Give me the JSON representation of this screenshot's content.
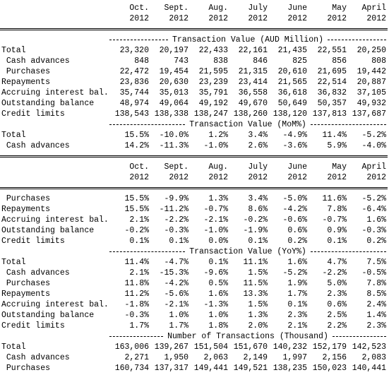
{
  "header_top": {
    "months": [
      "Oct.",
      "Sept.",
      "Aug.",
      "July",
      "June",
      "May",
      "April"
    ],
    "years": [
      "2012",
      "2012",
      "2012",
      "2012",
      "2012",
      "2012",
      "2012"
    ]
  },
  "value_section": {
    "title": "Transaction Value (AUD Million)",
    "rows": [
      {
        "label": "Total",
        "values": [
          "23,320",
          "20,197",
          "22,433",
          "22,161",
          "21,435",
          "22,551",
          "20,250"
        ]
      },
      {
        "label": " Cash advances",
        "values": [
          "848",
          "743",
          "838",
          "846",
          "825",
          "856",
          "808"
        ]
      },
      {
        "label": " Purchases",
        "values": [
          "22,472",
          "19,454",
          "21,595",
          "21,315",
          "20,610",
          "21,695",
          "19,442"
        ]
      },
      {
        "label": "Repayments",
        "values": [
          "23,836",
          "20,630",
          "23,239",
          "23,414",
          "21,565",
          "22,514",
          "20,887"
        ]
      },
      {
        "label": "Accruing interest bal.",
        "values": [
          "35,744",
          "35,013",
          "35,791",
          "36,558",
          "36,618",
          "36,832",
          "37,105"
        ]
      },
      {
        "label": "Outstanding balance",
        "values": [
          "48,974",
          "49,064",
          "49,192",
          "49,670",
          "50,649",
          "50,357",
          "49,932"
        ]
      },
      {
        "label": "Credit limits",
        "values": [
          "138,543",
          "138,338",
          "138,247",
          "138,260",
          "138,120",
          "137,813",
          "137,687"
        ]
      }
    ]
  },
  "mom_section": {
    "title": "Transaction Value (MoM%)",
    "rows": [
      {
        "label": "Total",
        "values": [
          "15.5%",
          "-10.0%",
          "1.2%",
          "3.4%",
          "-4.9%",
          "11.4%",
          "-5.2%"
        ]
      },
      {
        "label": " Cash advances",
        "values": [
          "14.2%",
          "-11.3%",
          "-1.0%",
          "2.6%",
          "-3.6%",
          "5.9%",
          "-4.0%"
        ]
      }
    ]
  },
  "header_bottom": {
    "months": [
      "Oct.",
      "Sept.",
      "Aug.",
      "July",
      "June",
      "May",
      "April"
    ],
    "years": [
      "2012",
      "2012",
      "2012",
      "2012",
      "2012",
      "2012",
      "2012"
    ]
  },
  "mom_section_continued": {
    "rows": [
      {
        "label": " Purchases",
        "values": [
          "15.5%",
          "-9.9%",
          "1.3%",
          "3.4%",
          "-5.0%",
          "11.6%",
          "-5.2%"
        ]
      },
      {
        "label": "Repayments",
        "values": [
          "15.5%",
          "-11.2%",
          "-0.7%",
          "8.6%",
          "-4.2%",
          "7.8%",
          "-6.4%"
        ]
      },
      {
        "label": "Accruing interest bal.",
        "values": [
          "2.1%",
          "-2.2%",
          "-2.1%",
          "-0.2%",
          "-0.6%",
          "-0.7%",
          "1.6%"
        ]
      },
      {
        "label": "Outstanding balance",
        "values": [
          "-0.2%",
          "-0.3%",
          "-1.0%",
          "-1.9%",
          "0.6%",
          "0.9%",
          "-0.3%"
        ]
      },
      {
        "label": "Credit limits",
        "values": [
          "0.1%",
          "0.1%",
          "0.0%",
          "0.1%",
          "0.2%",
          "0.1%",
          "0.2%"
        ]
      }
    ]
  },
  "yoy_section": {
    "title": "Transaction Value (YoY%)",
    "rows": [
      {
        "label": "Total",
        "values": [
          "11.4%",
          "-4.7%",
          "0.1%",
          "11.1%",
          "1.6%",
          "4.7%",
          "7.5%"
        ]
      },
      {
        "label": " Cash advances",
        "values": [
          "2.1%",
          "-15.3%",
          "-9.6%",
          "1.5%",
          "-5.2%",
          "-2.2%",
          "-0.5%"
        ]
      },
      {
        "label": " Purchases",
        "values": [
          "11.8%",
          "-4.2%",
          "0.5%",
          "11.5%",
          "1.9%",
          "5.0%",
          "7.8%"
        ]
      },
      {
        "label": "Repayments",
        "values": [
          "11.2%",
          "-5.6%",
          "1.6%",
          "13.3%",
          "1.7%",
          "2.3%",
          "8.5%"
        ]
      },
      {
        "label": "Accruing interest bal.",
        "values": [
          "-1.8%",
          "-2.1%",
          "-1.3%",
          "1.5%",
          "0.1%",
          "0.6%",
          "2.4%"
        ]
      },
      {
        "label": "Outstanding balance",
        "values": [
          "-0.3%",
          "1.0%",
          "1.0%",
          "1.3%",
          "2.3%",
          "2.5%",
          "1.4%"
        ]
      },
      {
        "label": "Credit limits",
        "values": [
          "1.7%",
          "1.7%",
          "1.8%",
          "2.0%",
          "2.1%",
          "2.2%",
          "2.3%"
        ]
      }
    ]
  },
  "count_section": {
    "title": "Number of Transactions (Thousand)",
    "rows": [
      {
        "label": "Total",
        "values": [
          "163,006",
          "139,267",
          "151,504",
          "151,670",
          "140,232",
          "152,179",
          "142,523"
        ]
      },
      {
        "label": " Cash advances",
        "values": [
          "2,271",
          "1,950",
          "2,063",
          "2,149",
          "1,997",
          "2,156",
          "2,083"
        ]
      },
      {
        "label": " Purchases",
        "values": [
          "160,734",
          "137,317",
          "149,441",
          "149,521",
          "138,235",
          "150,023",
          "140,441"
        ]
      }
    ]
  }
}
